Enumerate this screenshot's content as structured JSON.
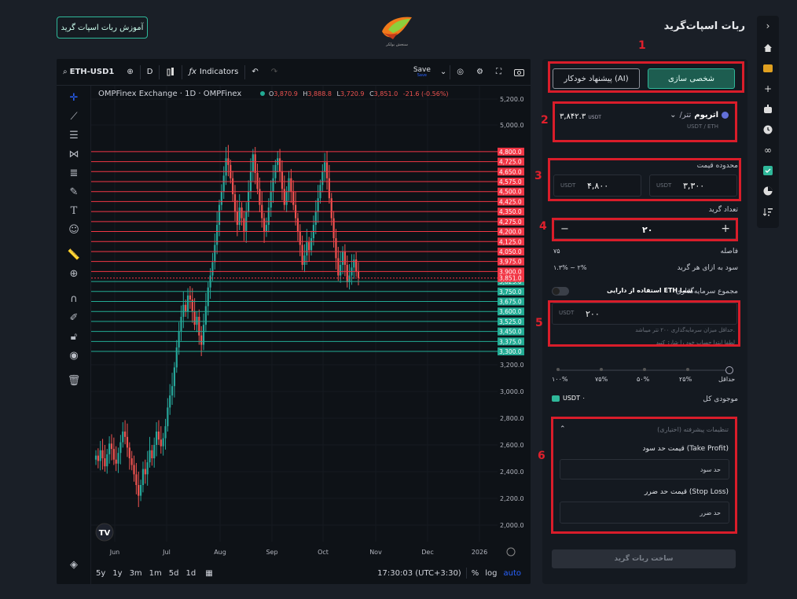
{
  "header": {
    "title": "ربات اسپات‌گرید",
    "tutorial_button": "آموزش ربات اسپات گرید",
    "logo_caption": "سنجش بولکر"
  },
  "colors": {
    "accent": "#2fb89a",
    "annotation_red": "#d91d2a",
    "grid_sell": "#f23645",
    "grid_buy": "#22ab94",
    "candle_up": "#26a69a",
    "candle_down": "#ef5350"
  },
  "rail_icons": [
    "chevron-right-icon",
    "home-icon",
    "wallet-icon",
    "plus-icon",
    "robot-icon",
    "clock-icon",
    "infinity-icon",
    "checklist-icon",
    "pie-chart-icon",
    "sort-icon"
  ],
  "chart": {
    "toolbar": {
      "symbol": "ETH-USD1",
      "interval": "D",
      "indicators": "Indicators",
      "save": "Save",
      "save_sub": "Save"
    },
    "legend": {
      "title": "OMPFinex Exchange · 1D · OMPFinex",
      "o_label": "O",
      "o": "3,870.9",
      "h_label": "H",
      "h": "3,888.8",
      "l_label": "L",
      "l": "3,720.9",
      "c_label": "C",
      "c": "3,851.0",
      "change": "-21.6 (-0.56%)"
    },
    "footer": {
      "ranges": [
        "5y",
        "1y",
        "3m",
        "1m",
        "5d",
        "1d"
      ],
      "time": "17:30:03 (UTC+3:30)",
      "percent": "%",
      "log": "log",
      "auto": "auto"
    }
  },
  "chart_data": {
    "type": "candlestick",
    "symbol": "ETH-USD1",
    "interval": "1D",
    "x_ticks": [
      "Jun",
      "Jul",
      "Aug",
      "Sep",
      "Oct",
      "Nov",
      "Dec",
      "2026"
    ],
    "y_ticks": [
      5200,
      5000,
      3200,
      3000,
      2800,
      2600,
      2400,
      2200,
      2000
    ],
    "y_tick_labels": [
      "5,200.0",
      "5,000.0",
      "3,200.0",
      "3,000.0",
      "2,800.0",
      "2,600.0",
      "2,400.0",
      "2,200.0",
      "2,000.0"
    ],
    "ylim": [
      1950,
      5300
    ],
    "last_price": 3851.0,
    "last_price_label": "3,851.0",
    "grid_sell_levels": [
      "4,800.0",
      "4,725.0",
      "4,650.0",
      "4,575.0",
      "4,500.0",
      "4,425.0",
      "4,350.0",
      "4,275.0",
      "4,200.0",
      "4,125.0",
      "4,050.0",
      "3,975.0",
      "3,900.0"
    ],
    "grid_buy_levels": [
      "3,825.0",
      "3,750.0",
      "3,675.0",
      "3,600.0",
      "3,525.0",
      "3,450.0",
      "3,375.0",
      "3,300.0"
    ],
    "closes": [
      2520,
      2480,
      2560,
      2500,
      2440,
      2530,
      2610,
      2570,
      2490,
      2460,
      2540,
      2620,
      2700,
      2660,
      2580,
      2500,
      2450,
      2380,
      2300,
      2220,
      2300,
      2420,
      2380,
      2470,
      2560,
      2500,
      2600,
      2700,
      2640,
      2590,
      2650,
      2740,
      2880,
      2970,
      3040,
      3180,
      3330,
      3450,
      3560,
      3650,
      3600,
      3720,
      3690,
      3600,
      3500,
      3560,
      3420,
      3350,
      3500,
      3640,
      3780,
      3870,
      3970,
      4100,
      4250,
      4400,
      4500,
      4620,
      4750,
      4700,
      4600,
      4480,
      4350,
      4250,
      4380,
      4300,
      4200,
      4350,
      4500,
      4650,
      4780,
      4640,
      4520,
      4400,
      4300,
      4200,
      4250,
      4380,
      4500,
      4600,
      4700,
      4750,
      4650,
      4520,
      4400,
      4500,
      4600,
      4500,
      4400,
      4300,
      4200,
      4100,
      3950,
      4020,
      4120,
      4060,
      4150,
      4250,
      4350,
      4450,
      4550,
      4650,
      4720,
      4600,
      4450,
      4300,
      4150,
      4000,
      3870,
      3950,
      4050,
      3950,
      3820,
      3870,
      3930,
      3990,
      3900,
      3851
    ]
  },
  "form": {
    "mode_ai": "پیشنهاد خودکار (AI)",
    "mode_manual": "شخصی سازی",
    "pair_name": "اتریوم",
    "pair_quote": "/تتر",
    "pair_sub": "USDT / ETH",
    "pair_price": "۳,۸۴۲.۳",
    "pair_price_unit": "USDT",
    "price_range_label": "محدوده قیمت",
    "price_min": "۳,۳۰۰",
    "price_max": "۴,۸۰۰",
    "unit": "USDT",
    "grid_count_label": "تعداد گرید",
    "grid_count": "۲۰",
    "spacing_label": "فاصله",
    "spacing_value": "۷۵",
    "profit_label": "سود به ازای هر گرید",
    "profit_value": "۱.۳% ~ ۲%",
    "investment_label": "مجموع سرمایه‌گذاری",
    "use_eth_label": "استفاده از دارایی ETH شما",
    "investment_value": "۲۰۰",
    "min_invest_note": "حداقل میزان سرمایه‌گذاری ۲۰۰ تتر میباشد.",
    "balance_note": "لطفا ابتدا حساب خود را شارژ کنید",
    "slider_labels": [
      "حداقل",
      "۲۵%",
      "۵۰%",
      "۷۵%",
      "۱۰۰%"
    ],
    "balance_label": "موجودی کل",
    "balance_value": "USDT ۰",
    "advanced_label": "تنظیمات پیشرفته (اختیاری)",
    "tp_label": "قیمت حد سود (Take Profit)",
    "tp_placeholder": "حد سود",
    "sl_label": "قیمت حد ضرر (Stop Loss)",
    "sl_placeholder": "حد ضرر",
    "submit": "ساخت ربات گرید"
  },
  "annotations": [
    "1",
    "2",
    "3",
    "4",
    "5",
    "6"
  ]
}
